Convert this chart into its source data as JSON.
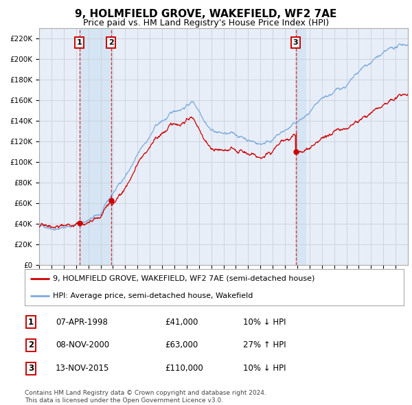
{
  "title": "9, HOLMFIELD GROVE, WAKEFIELD, WF2 7AE",
  "subtitle": "Price paid vs. HM Land Registry's House Price Index (HPI)",
  "title_fontsize": 11,
  "subtitle_fontsize": 9,
  "background_color": "#ffffff",
  "plot_bg_color": "#e8eef8",
  "grid_color": "#c8d0dc",
  "sale1_date": 1998.27,
  "sale1_price": 41000,
  "sale2_date": 2000.85,
  "sale2_price": 63000,
  "sale3_date": 2015.87,
  "sale3_price": 110000,
  "red_line_color": "#cc0000",
  "blue_line_color": "#7aaadd",
  "dot_color": "#cc0000",
  "dashed_line_color": "#cc0000",
  "highlight_fill": "#d4e4f4",
  "ylim": [
    0,
    230000
  ],
  "xlim_start": 1995.0,
  "xlim_end": 2025.0,
  "legend_label1": "9, HOLMFIELD GROVE, WAKEFIELD, WF2 7AE (semi-detached house)",
  "legend_label2": "HPI: Average price, semi-detached house, Wakefield",
  "table_entries": [
    {
      "num": 1,
      "date": "07-APR-1998",
      "price": "£41,000",
      "hpi": "10% ↓ HPI"
    },
    {
      "num": 2,
      "date": "08-NOV-2000",
      "price": "£63,000",
      "hpi": "27% ↑ HPI"
    },
    {
      "num": 3,
      "date": "13-NOV-2015",
      "price": "£110,000",
      "hpi": "10% ↓ HPI"
    }
  ],
  "footnote1": "Contains HM Land Registry data © Crown copyright and database right 2024.",
  "footnote2": "This data is licensed under the Open Government Licence v3.0."
}
